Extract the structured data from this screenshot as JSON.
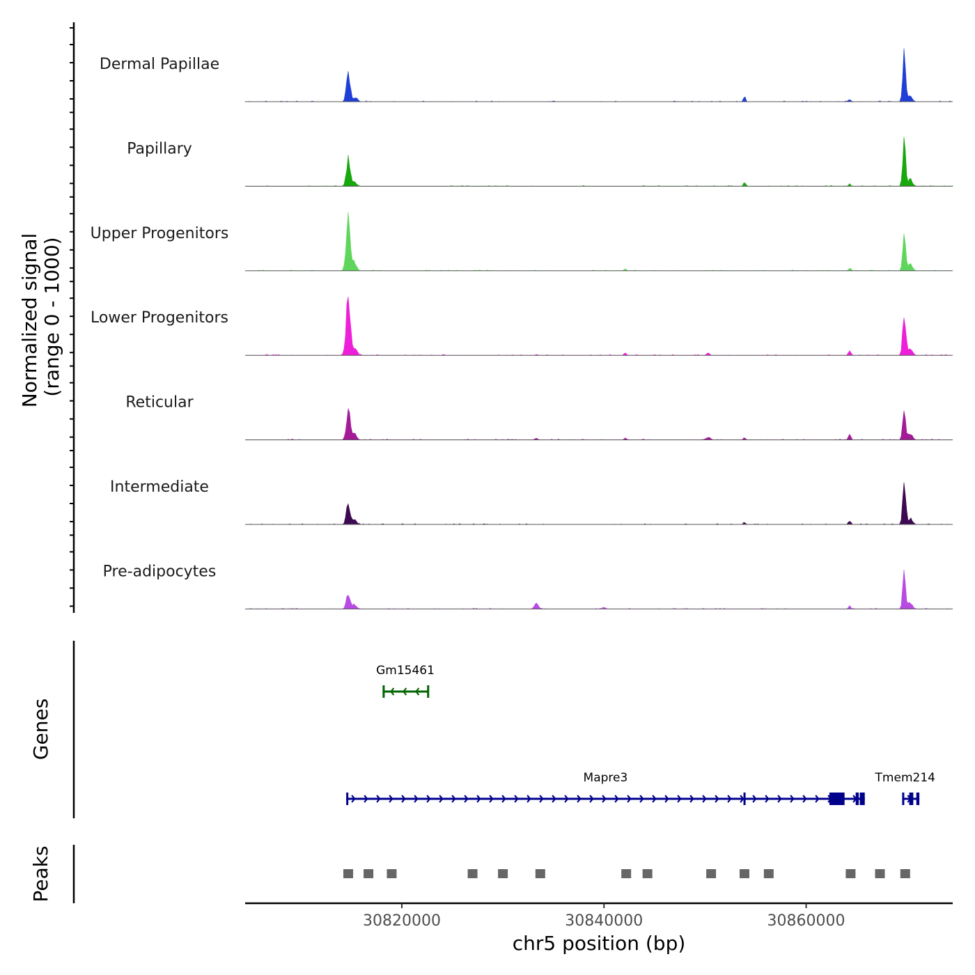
{
  "chart_data": {
    "type": "area",
    "y_axis_title_line1": "Normalized signal",
    "y_axis_title_line2": "(range 0 - 1000)",
    "x_axis_title": "chr5 position (bp)",
    "xlim": [
      30804500,
      30874500
    ],
    "x_ticks": [
      30820000,
      30840000,
      30860000
    ],
    "x_tick_labels": [
      "30820000",
      "30840000",
      "30860000"
    ],
    "tracks": [
      {
        "name": "Dermal Papillae",
        "color": "#1f3fd6",
        "peaks": [
          {
            "x": 30814700,
            "h": 0.55,
            "w": 250
          },
          {
            "x": 30815400,
            "h": 0.08,
            "w": 300
          },
          {
            "x": 30853900,
            "h": 0.09,
            "w": 150
          },
          {
            "x": 30864300,
            "h": 0.04,
            "w": 200
          },
          {
            "x": 30869700,
            "h": 0.9,
            "w": 200
          },
          {
            "x": 30870300,
            "h": 0.1,
            "w": 300
          }
        ]
      },
      {
        "name": "Papillary",
        "color": "#18a80e",
        "peaks": [
          {
            "x": 30814700,
            "h": 0.5,
            "w": 250
          },
          {
            "x": 30815300,
            "h": 0.08,
            "w": 300
          },
          {
            "x": 30853900,
            "h": 0.07,
            "w": 150
          },
          {
            "x": 30864300,
            "h": 0.05,
            "w": 150
          },
          {
            "x": 30869700,
            "h": 0.85,
            "w": 200
          },
          {
            "x": 30870300,
            "h": 0.12,
            "w": 300
          }
        ]
      },
      {
        "name": "Upper Progenitors",
        "color": "#5fd65b",
        "peaks": [
          {
            "x": 30814700,
            "h": 0.92,
            "w": 280
          },
          {
            "x": 30815300,
            "h": 0.15,
            "w": 300
          },
          {
            "x": 30842100,
            "h": 0.04,
            "w": 150
          },
          {
            "x": 30864300,
            "h": 0.05,
            "w": 150
          },
          {
            "x": 30869700,
            "h": 0.58,
            "w": 200
          },
          {
            "x": 30870300,
            "h": 0.12,
            "w": 300
          }
        ]
      },
      {
        "name": "Lower Progenitors",
        "color": "#ee1fd8",
        "peaks": [
          {
            "x": 30814700,
            "h": 0.96,
            "w": 300
          },
          {
            "x": 30815400,
            "h": 0.1,
            "w": 300
          },
          {
            "x": 30842100,
            "h": 0.05,
            "w": 150
          },
          {
            "x": 30850300,
            "h": 0.04,
            "w": 200
          },
          {
            "x": 30864300,
            "h": 0.08,
            "w": 180
          },
          {
            "x": 30869700,
            "h": 0.72,
            "w": 220
          },
          {
            "x": 30870300,
            "h": 0.12,
            "w": 300
          }
        ]
      },
      {
        "name": "Reticular",
        "color": "#a31b98",
        "peaks": [
          {
            "x": 30814700,
            "h": 0.59,
            "w": 250
          },
          {
            "x": 30815300,
            "h": 0.12,
            "w": 300
          },
          {
            "x": 30833300,
            "h": 0.03,
            "w": 200
          },
          {
            "x": 30842100,
            "h": 0.03,
            "w": 150
          },
          {
            "x": 30850300,
            "h": 0.05,
            "w": 300
          },
          {
            "x": 30853900,
            "h": 0.04,
            "w": 150
          },
          {
            "x": 30864300,
            "h": 0.11,
            "w": 150
          },
          {
            "x": 30869700,
            "h": 0.6,
            "w": 200
          },
          {
            "x": 30870300,
            "h": 0.12,
            "w": 300
          }
        ]
      },
      {
        "name": "Intermediate",
        "color": "#3d0a52",
        "peaks": [
          {
            "x": 30814700,
            "h": 0.4,
            "w": 250
          },
          {
            "x": 30815300,
            "h": 0.08,
            "w": 300
          },
          {
            "x": 30853900,
            "h": 0.04,
            "w": 150
          },
          {
            "x": 30864300,
            "h": 0.06,
            "w": 150
          },
          {
            "x": 30869700,
            "h": 0.85,
            "w": 200
          },
          {
            "x": 30870300,
            "h": 0.1,
            "w": 300
          }
        ]
      },
      {
        "name": "Pre-adipocytes",
        "color": "#b84be3",
        "peaks": [
          {
            "x": 30814700,
            "h": 0.3,
            "w": 250
          },
          {
            "x": 30815300,
            "h": 0.08,
            "w": 300
          },
          {
            "x": 30833300,
            "h": 0.1,
            "w": 280
          },
          {
            "x": 30840000,
            "h": 0.03,
            "w": 150
          },
          {
            "x": 30864300,
            "h": 0.06,
            "w": 150
          },
          {
            "x": 30869700,
            "h": 0.62,
            "w": 200
          },
          {
            "x": 30870300,
            "h": 0.12,
            "w": 300
          }
        ]
      }
    ],
    "genes_track_title": "Genes",
    "genes": [
      {
        "name": "Gm15461",
        "start": 30818100,
        "end": 30822600,
        "strand": "-",
        "color": "#006400",
        "row": 1,
        "exons": [
          [
            30818100,
            30818300
          ],
          [
            30822500,
            30822600
          ]
        ]
      },
      {
        "name": "Mapre3",
        "start": 30814500,
        "end": 30865800,
        "strand": "+",
        "color": "#00008b",
        "row": 2,
        "exons": [
          [
            30814500,
            30814700
          ],
          [
            30853800,
            30854000
          ],
          [
            30862300,
            30863800
          ],
          [
            30864900,
            30865200
          ],
          [
            30865300,
            30865800
          ]
        ]
      },
      {
        "name": "Tmem214",
        "start": 30869500,
        "end": 30871200,
        "strand": "+",
        "color": "#00008b",
        "row": 2,
        "exons": [
          [
            30869500,
            30869700
          ],
          [
            30870200,
            30870600
          ],
          [
            30870900,
            30871200
          ]
        ]
      }
    ],
    "peaks_track_title": "Peaks",
    "peak_color": "#666666",
    "peak_regions": [
      30814700,
      30816700,
      30819000,
      30827000,
      30830000,
      30833700,
      30842200,
      30844300,
      30850600,
      30853900,
      30856300,
      30864400,
      30867300,
      30869800
    ]
  }
}
